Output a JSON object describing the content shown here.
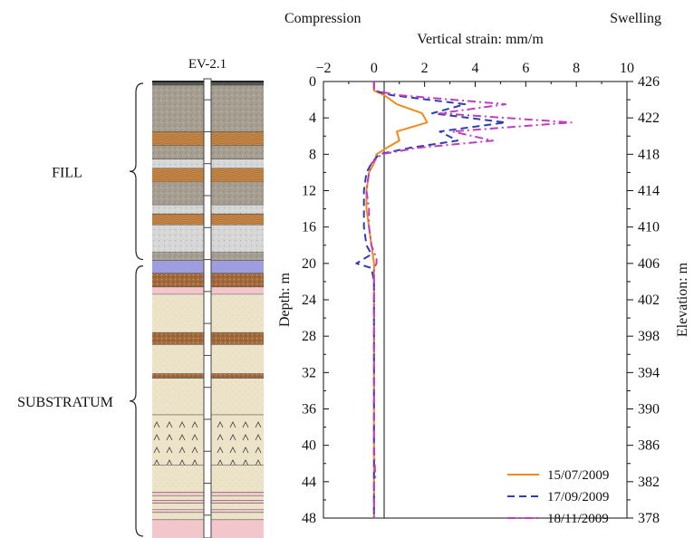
{
  "figure": {
    "well_label": "EV-2.1",
    "zone_labels": [
      {
        "text": "FILL",
        "top_depth": 0,
        "bottom_depth": 19.5
      },
      {
        "text": "SUBSTRATUM",
        "top_depth": 20,
        "bottom_depth": 50
      }
    ],
    "top_left_label": "Compression",
    "top_right_label": "Swelling",
    "soil_column": {
      "layers": [
        {
          "top": 0.0,
          "bottom": 0.4,
          "kind": "dark"
        },
        {
          "top": 0.4,
          "bottom": 5.5,
          "kind": "gravel"
        },
        {
          "top": 5.5,
          "bottom": 7.0,
          "kind": "wood"
        },
        {
          "top": 7.0,
          "bottom": 8.5,
          "kind": "gravel"
        },
        {
          "top": 8.5,
          "bottom": 9.5,
          "kind": "lightgravel"
        },
        {
          "top": 9.5,
          "bottom": 11.0,
          "kind": "wood"
        },
        {
          "top": 11.0,
          "bottom": 13.5,
          "kind": "gravel"
        },
        {
          "top": 13.5,
          "bottom": 14.5,
          "kind": "lightgravel"
        },
        {
          "top": 14.5,
          "bottom": 15.7,
          "kind": "wood"
        },
        {
          "top": 15.7,
          "bottom": 18.7,
          "kind": "lightgravel"
        },
        {
          "top": 18.7,
          "bottom": 19.6,
          "kind": "gravel"
        },
        {
          "top": 19.6,
          "bottom": 21.0,
          "kind": "blue"
        },
        {
          "top": 21.0,
          "bottom": 22.5,
          "kind": "brown"
        },
        {
          "top": 22.5,
          "bottom": 23.3,
          "kind": "pink"
        },
        {
          "top": 23.3,
          "bottom": 27.5,
          "kind": "sand"
        },
        {
          "top": 27.5,
          "bottom": 28.8,
          "kind": "brown"
        },
        {
          "top": 28.8,
          "bottom": 32.0,
          "kind": "sand"
        },
        {
          "top": 32.0,
          "bottom": 32.5,
          "kind": "brown"
        },
        {
          "top": 32.5,
          "bottom": 36.5,
          "kind": "sand"
        },
        {
          "top": 36.5,
          "bottom": 42.0,
          "kind": "carets"
        },
        {
          "top": 42.0,
          "bottom": 45.0,
          "kind": "sand"
        },
        {
          "top": 45.0,
          "bottom": 45.4,
          "kind": "pink"
        },
        {
          "top": 45.4,
          "bottom": 45.9,
          "kind": "sand"
        },
        {
          "top": 45.9,
          "bottom": 46.2,
          "kind": "pink"
        },
        {
          "top": 46.2,
          "bottom": 46.9,
          "kind": "sand"
        },
        {
          "top": 46.9,
          "bottom": 47.2,
          "kind": "pink"
        },
        {
          "top": 47.2,
          "bottom": 48.0,
          "kind": "sand"
        },
        {
          "top": 48.0,
          "bottom": 50.0,
          "kind": "pink"
        }
      ]
    },
    "colors": {
      "gravel": "#a89f93",
      "lightgravel": "#d6d6d6",
      "wood": "#c98a4a",
      "blue": "#9e9de0",
      "brown": "#a36a3c",
      "pink": "#f3c6cb",
      "sand": "#ede3c9",
      "dark": "#555555"
    }
  },
  "chart_data": {
    "type": "line",
    "xlabel": "Vertical strain: mm/m",
    "ylabel": "Depth: m",
    "y2label": "Elevation: m",
    "xlim": [
      -2,
      10
    ],
    "ylim": [
      0,
      48
    ],
    "x_ticks": [
      -2,
      0,
      2,
      4,
      6,
      8,
      10
    ],
    "x_tick_labels": [
      "−2",
      "0",
      "2",
      "4",
      "6",
      "8",
      "10"
    ],
    "y_ticks": [
      0,
      4,
      8,
      12,
      16,
      20,
      24,
      28,
      32,
      36,
      40,
      44,
      48
    ],
    "y_tick_labels": [
      "0",
      "4",
      "8",
      "12",
      "16",
      "20",
      "24",
      "28",
      "32",
      "36",
      "40",
      "44",
      "48"
    ],
    "y2_ticks": [
      426,
      422,
      418,
      414,
      410,
      406,
      402,
      398,
      394,
      390,
      386,
      382,
      378
    ],
    "y2_tick_labels": [
      "426",
      "422",
      "418",
      "414",
      "410",
      "406",
      "402",
      "398",
      "394",
      "390",
      "386",
      "382",
      "378"
    ],
    "grid": false,
    "legend": "bottom-right",
    "series": [
      {
        "name": "15/07/2009",
        "color": "#f28a1c",
        "dash": "solid",
        "depth": [
          0,
          1.0,
          1.5,
          2.5,
          3.5,
          4.5,
          5.5,
          6.5,
          7.3,
          8.0,
          9.0,
          10,
          12,
          14,
          16,
          18,
          20,
          22,
          24,
          28,
          32,
          36,
          40,
          44,
          48
        ],
        "strain": [
          0,
          0,
          0.4,
          0.9,
          1.9,
          2.1,
          0.9,
          1.0,
          0.5,
          0.1,
          0,
          -0.2,
          -0.3,
          -0.3,
          -0.2,
          -0.1,
          0,
          0,
          0,
          0,
          0,
          0,
          0,
          0,
          0
        ]
      },
      {
        "name": "17/09/2009",
        "color": "#2f3fb3",
        "dash": "dash",
        "depth": [
          0,
          1.0,
          1.5,
          2.5,
          3.5,
          4.5,
          5.5,
          6.5,
          7.3,
          8.0,
          9.0,
          10,
          12,
          14,
          16,
          18,
          19,
          20,
          20.5,
          22,
          24,
          28,
          32,
          36,
          40,
          44,
          48
        ],
        "strain": [
          0,
          0,
          0.7,
          3.6,
          2.3,
          5.2,
          2.6,
          3.3,
          1.4,
          0.2,
          -0.1,
          -0.3,
          -0.4,
          -0.4,
          -0.4,
          -0.3,
          -0.1,
          -0.7,
          -0.1,
          0,
          0,
          0,
          0,
          0,
          0,
          0,
          0
        ]
      },
      {
        "name": "18/11/2009",
        "color": "#c23cc2",
        "dash": "dashdot",
        "depth": [
          0,
          1.0,
          1.5,
          2.5,
          3.5,
          4.5,
          5.5,
          6.5,
          7.3,
          8.0,
          9.0,
          10,
          12,
          14,
          16,
          18,
          19.5,
          20,
          20.5,
          22,
          24,
          28,
          32,
          36,
          40,
          43.5,
          44,
          48
        ],
        "strain": [
          0,
          0,
          1.0,
          5.2,
          2.6,
          7.8,
          3.1,
          4.7,
          1.7,
          0.3,
          -0.1,
          -0.2,
          -0.3,
          -0.2,
          -0.2,
          -0.1,
          0.1,
          0.1,
          0,
          0,
          0,
          0,
          0,
          0,
          0,
          0.05,
          0,
          0
        ]
      }
    ]
  }
}
